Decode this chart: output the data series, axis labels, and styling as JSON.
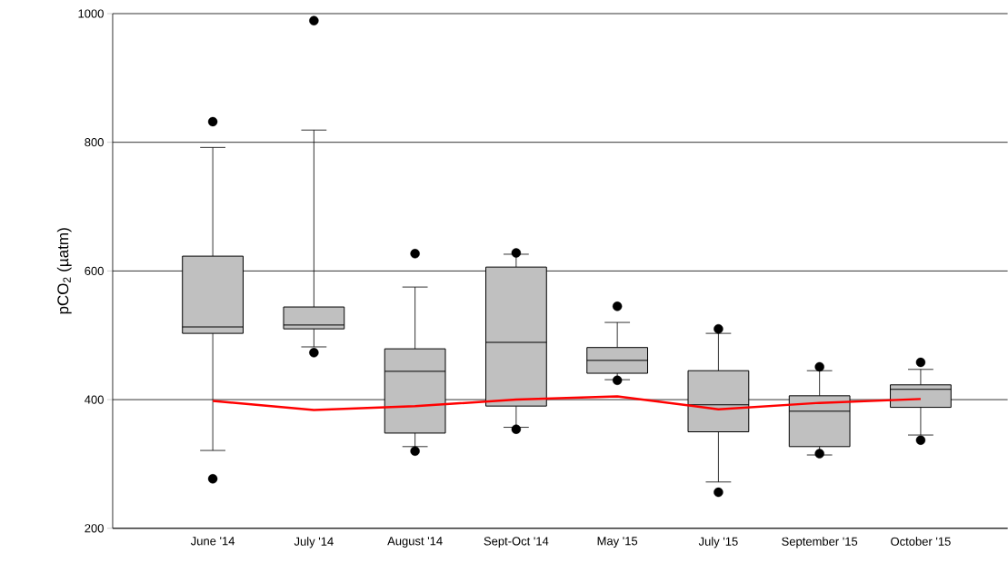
{
  "chart_data": {
    "type": "box",
    "ylabel": "pCO$_{2}$ (µatm)",
    "categories": [
      "June '14",
      "July '14",
      "August '14",
      "Sept-Oct '14",
      "May '15",
      "July '15",
      "September '15",
      "October '15"
    ],
    "ylim": [
      200,
      1000
    ],
    "yticks": [
      200,
      400,
      600,
      800,
      1000
    ],
    "grid": "y",
    "series": [
      {
        "color": "#c0c0c0",
        "boxes": [
          {
            "low": 321,
            "q1": 503,
            "median": 513,
            "q3": 623,
            "high": 792,
            "outliers": [
              832,
              277
            ]
          },
          {
            "low": 482,
            "q1": 510,
            "median": 516,
            "q3": 544,
            "high": 819,
            "outliers": [
              989,
              473
            ]
          },
          {
            "low": 327,
            "q1": 348,
            "median": 444,
            "q3": 479,
            "high": 575,
            "outliers": [
              627,
              320
            ]
          },
          {
            "low": 357,
            "q1": 390,
            "median": 489,
            "q3": 606,
            "high": 626,
            "outliers": [
              628,
              354
            ]
          },
          {
            "low": 431,
            "q1": 441,
            "median": 461,
            "q3": 481,
            "high": 520,
            "outliers": [
              545,
              430
            ]
          },
          {
            "low": 272,
            "q1": 350,
            "median": 392,
            "q3": 445,
            "high": 503,
            "outliers": [
              510,
              256
            ]
          },
          {
            "low": 314,
            "q1": 327,
            "median": 382,
            "q3": 406,
            "high": 445,
            "outliers": [
              451,
              316
            ]
          },
          {
            "low": 345,
            "q1": 388,
            "median": 416,
            "q3": 423,
            "high": 447,
            "outliers": [
              458,
              337
            ]
          }
        ]
      },
      {
        "type": "line",
        "color": "#ff0000",
        "values": [
          398,
          384,
          390,
          400,
          405,
          385,
          395,
          401
        ]
      }
    ]
  }
}
